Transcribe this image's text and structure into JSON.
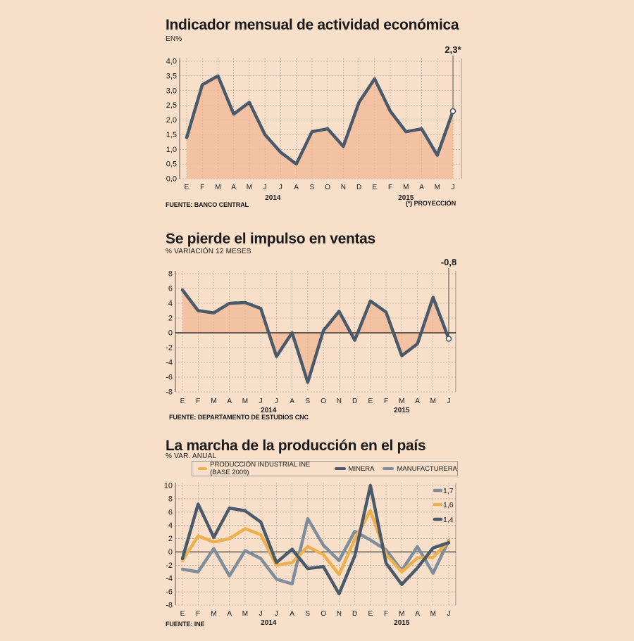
{
  "charts": [
    {
      "title": "Indicador mensual de actividad económica",
      "subtitle": "EN%",
      "source": "FUENTE: BANCO CENTRAL",
      "footnote": "(*) PROYECCIÓN",
      "callout": "2,3*"
    },
    {
      "title": "Se pierde el impulso en ventas",
      "subtitle": "% VARIACIÓN 12 MESES",
      "source": "FUENTE: DEPARTAMENTO DE ESTUDIOS CNC",
      "callout": "-0,8"
    },
    {
      "title": "La marcha de la producción en el país",
      "subtitle": "% VAR. ANUAL",
      "source": "FUENTE: INE",
      "legend": [
        "PRODUCCIÓN INDUSTRIAL INE (BASE 2009)",
        "MINERA",
        "MANUFACTURERA"
      ],
      "end_labels": [
        "1,7",
        "1,6",
        "1,4"
      ]
    }
  ],
  "chart_data": [
    {
      "type": "area",
      "title": "Indicador mensual de actividad económica",
      "ylabel": "EN%",
      "categories": [
        "E",
        "F",
        "M",
        "A",
        "M",
        "J",
        "J",
        "A",
        "S",
        "O",
        "N",
        "D",
        "E",
        "F",
        "M",
        "A",
        "M",
        "J"
      ],
      "year_labels": [
        "2014",
        "2015"
      ],
      "values": [
        1.4,
        3.2,
        3.5,
        2.2,
        2.6,
        1.5,
        0.9,
        0.5,
        1.6,
        1.7,
        1.1,
        2.6,
        3.4,
        2.3,
        1.6,
        1.7,
        0.8,
        2.3
      ],
      "ylim": [
        0,
        4
      ],
      "yticks": [
        "0,0",
        "0,5",
        "1,0",
        "1,5",
        "2,0",
        "2,5",
        "3,0",
        "3,5",
        "4,0"
      ],
      "colors": {
        "line": "#4a5a6b",
        "fill": "#f2bd9b"
      }
    },
    {
      "type": "area",
      "title": "Se pierde el impulso en ventas",
      "ylabel": "% VARIACIÓN 12 MESES",
      "categories": [
        "E",
        "F",
        "M",
        "A",
        "M",
        "J",
        "J",
        "A",
        "S",
        "O",
        "N",
        "D",
        "E",
        "F",
        "M",
        "A",
        "M",
        "J"
      ],
      "year_labels": [
        "2014",
        "2015"
      ],
      "values": [
        5.8,
        3.0,
        2.7,
        4.0,
        4.1,
        3.3,
        -3.2,
        0.0,
        -6.7,
        0.3,
        2.9,
        -1.0,
        4.3,
        2.8,
        -3.1,
        -1.5,
        4.8,
        -0.8
      ],
      "ylim": [
        -8,
        8
      ],
      "yticks": [
        "-8",
        "-6",
        "-4",
        "-2",
        "0",
        "2",
        "4",
        "6",
        "8"
      ],
      "colors": {
        "line": "#4a5a6b",
        "fill": "#f2bd9b"
      }
    },
    {
      "type": "line",
      "title": "La marcha de la producción en el país",
      "ylabel": "% VAR. ANUAL",
      "categories": [
        "E",
        "F",
        "M",
        "A",
        "M",
        "J",
        "J",
        "A",
        "S",
        "O",
        "N",
        "D",
        "E",
        "F",
        "M",
        "A",
        "M",
        "J"
      ],
      "year_labels": [
        "2014",
        "2015"
      ],
      "ylim": [
        -8,
        10
      ],
      "yticks": [
        "-8",
        "-6",
        "-4",
        "-2",
        "0",
        "2",
        "4",
        "6",
        "8",
        "10"
      ],
      "series": [
        {
          "name": "MANUFACTURERA",
          "color": "#7f8e9c",
          "values": [
            -2.6,
            -3.0,
            0.5,
            -3.6,
            0.2,
            -1.0,
            -4.1,
            -4.8,
            5.0,
            1.0,
            -1.3,
            3.1,
            1.8,
            0.3,
            -2.8,
            0.8,
            -3.2,
            1.7
          ]
        },
        {
          "name": "PRODUCCIÓN INDUSTRIAL INE (BASE 2009)",
          "color": "#edb04e",
          "values": [
            -1.3,
            2.4,
            1.5,
            2.0,
            3.5,
            2.6,
            -2.0,
            -1.6,
            0.8,
            -0.4,
            -3.4,
            1.9,
            6.2,
            -0.4,
            -3.0,
            -0.9,
            -0.8,
            1.6
          ]
        },
        {
          "name": "MINERA",
          "color": "#4a5a6b",
          "values": [
            -1.0,
            7.2,
            2.2,
            6.6,
            6.2,
            4.5,
            -1.6,
            0.4,
            -2.5,
            -2.2,
            -6.3,
            -0.6,
            10.0,
            -1.7,
            -4.9,
            -2.4,
            0.6,
            1.4
          ]
        }
      ]
    }
  ]
}
